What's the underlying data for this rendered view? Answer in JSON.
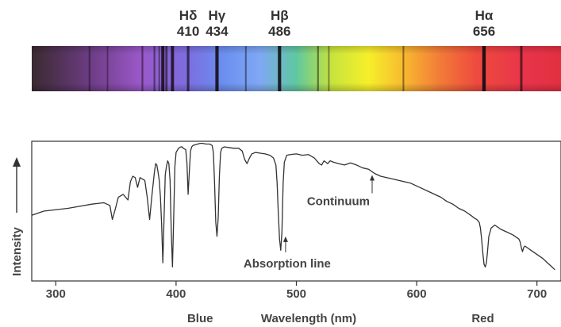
{
  "chart_data": [
    {
      "type": "spectrum-strip",
      "x_range": [
        280,
        720
      ],
      "continuum_gradient": [
        {
          "x": 280,
          "color": "#3a2a30"
        },
        {
          "x": 330,
          "color": "#6e3d86"
        },
        {
          "x": 370,
          "color": "#9a58c8"
        },
        {
          "x": 410,
          "color": "#7c6ee0"
        },
        {
          "x": 440,
          "color": "#6b8ff0"
        },
        {
          "x": 470,
          "color": "#7fa8f4"
        },
        {
          "x": 500,
          "color": "#5fc8a0"
        },
        {
          "x": 530,
          "color": "#c8e43c"
        },
        {
          "x": 560,
          "color": "#f6ef2a"
        },
        {
          "x": 590,
          "color": "#f8b830"
        },
        {
          "x": 620,
          "color": "#f27a38"
        },
        {
          "x": 650,
          "color": "#ee4a3e"
        },
        {
          "x": 690,
          "color": "#e8344a"
        },
        {
          "x": 720,
          "color": "#e23040"
        }
      ],
      "absorption_lines": [
        {
          "x": 328,
          "strength": 0.3
        },
        {
          "x": 343,
          "strength": 0.25
        },
        {
          "x": 372,
          "strength": 0.35
        },
        {
          "x": 382,
          "strength": 0.35
        },
        {
          "x": 386,
          "strength": 0.3
        },
        {
          "x": 389,
          "strength": 0.85
        },
        {
          "x": 392,
          "strength": 0.5
        },
        {
          "x": 397,
          "strength": 0.8
        },
        {
          "x": 410,
          "strength": 0.6
        },
        {
          "x": 434,
          "strength": 0.9
        },
        {
          "x": 458,
          "strength": 0.3
        },
        {
          "x": 486,
          "strength": 0.9
        },
        {
          "x": 518,
          "strength": 0.35
        },
        {
          "x": 527,
          "strength": 0.25
        },
        {
          "x": 589,
          "strength": 0.3
        },
        {
          "x": 656,
          "strength": 0.95
        },
        {
          "x": 687,
          "strength": 0.55
        }
      ],
      "line_labels": [
        {
          "name": "Hδ",
          "value": "410",
          "x": 410
        },
        {
          "name": "Hγ",
          "value": "434",
          "x": 434
        },
        {
          "name": "Hβ",
          "value": "486",
          "x": 486
        },
        {
          "name": "Hα",
          "value": "656",
          "x": 656
        }
      ]
    },
    {
      "type": "line",
      "xlabel": "Wavelength (nm)",
      "ylabel": "Intensity",
      "xlim": [
        280,
        720
      ],
      "ylim": [
        0,
        1
      ],
      "x_ticks": [
        300,
        400,
        500,
        600,
        700
      ],
      "x_tick_labels": [
        "300",
        "400",
        "500",
        "600",
        "700"
      ],
      "region_labels": [
        {
          "text": "Blue",
          "x": 420
        },
        {
          "text": "Red",
          "x": 655
        }
      ],
      "annotations": [
        {
          "text": "Continuum",
          "x": 563,
          "y": 0.77
        },
        {
          "text": "Absorption line",
          "x": 491,
          "y": 0.33
        }
      ],
      "series": [
        {
          "x": [
            280,
            290,
            300,
            310,
            320,
            330,
            340,
            345,
            347,
            349,
            352,
            356,
            360,
            362,
            364,
            366,
            368,
            370,
            372,
            374,
            376,
            378,
            380,
            382,
            383,
            384,
            385,
            386,
            387,
            388,
            389,
            390,
            391,
            392,
            393,
            394,
            395,
            396,
            397,
            398,
            399,
            400,
            402,
            404,
            405,
            406,
            408,
            409,
            410,
            411,
            412,
            413,
            414,
            416,
            418,
            420,
            422,
            425,
            428,
            430,
            431,
            432,
            433,
            434,
            435,
            436,
            437,
            438,
            440,
            444,
            448,
            452,
            455,
            457,
            459,
            461,
            463,
            466,
            470,
            474,
            478,
            481,
            483,
            484,
            485,
            486,
            487,
            488,
            489,
            490,
            492,
            495,
            500,
            505,
            510,
            513,
            515,
            517,
            519,
            521,
            523,
            526,
            528,
            531,
            535,
            540,
            545,
            550,
            555,
            560,
            565,
            570,
            575,
            580,
            585,
            590,
            595,
            600,
            605,
            610,
            615,
            620,
            625,
            630,
            635,
            640,
            645,
            648,
            650,
            652,
            653,
            654,
            655,
            656,
            657,
            658,
            659,
            660,
            662,
            665,
            670,
            675,
            680,
            685,
            686,
            687,
            688,
            689,
            690,
            695,
            700,
            705,
            710,
            715
          ],
          "y": [
            0.47,
            0.5,
            0.51,
            0.52,
            0.535,
            0.55,
            0.56,
            0.54,
            0.44,
            0.5,
            0.6,
            0.62,
            0.58,
            0.71,
            0.75,
            0.74,
            0.67,
            0.74,
            0.73,
            0.72,
            0.6,
            0.44,
            0.62,
            0.78,
            0.84,
            0.83,
            0.78,
            0.72,
            0.6,
            0.4,
            0.13,
            0.45,
            0.76,
            0.82,
            0.86,
            0.84,
            0.72,
            0.35,
            0.1,
            0.45,
            0.82,
            0.92,
            0.95,
            0.96,
            0.96,
            0.95,
            0.94,
            0.85,
            0.62,
            0.78,
            0.93,
            0.96,
            0.97,
            0.975,
            0.98,
            0.985,
            0.985,
            0.98,
            0.98,
            0.97,
            0.92,
            0.7,
            0.42,
            0.32,
            0.45,
            0.75,
            0.92,
            0.95,
            0.96,
            0.955,
            0.95,
            0.95,
            0.93,
            0.87,
            0.84,
            0.88,
            0.91,
            0.92,
            0.915,
            0.91,
            0.9,
            0.88,
            0.83,
            0.7,
            0.48,
            0.3,
            0.22,
            0.35,
            0.7,
            0.85,
            0.9,
            0.905,
            0.91,
            0.9,
            0.905,
            0.89,
            0.88,
            0.86,
            0.84,
            0.83,
            0.86,
            0.84,
            0.86,
            0.85,
            0.84,
            0.83,
            0.845,
            0.83,
            0.81,
            0.8,
            0.77,
            0.75,
            0.74,
            0.73,
            0.72,
            0.71,
            0.7,
            0.68,
            0.66,
            0.64,
            0.62,
            0.6,
            0.57,
            0.55,
            0.52,
            0.5,
            0.47,
            0.45,
            0.44,
            0.42,
            0.38,
            0.3,
            0.2,
            0.12,
            0.1,
            0.13,
            0.22,
            0.32,
            0.38,
            0.4,
            0.37,
            0.35,
            0.33,
            0.3,
            0.28,
            0.24,
            0.21,
            0.24,
            0.25,
            0.22,
            0.19,
            0.16,
            0.12,
            0.08
          ]
        }
      ]
    }
  ]
}
